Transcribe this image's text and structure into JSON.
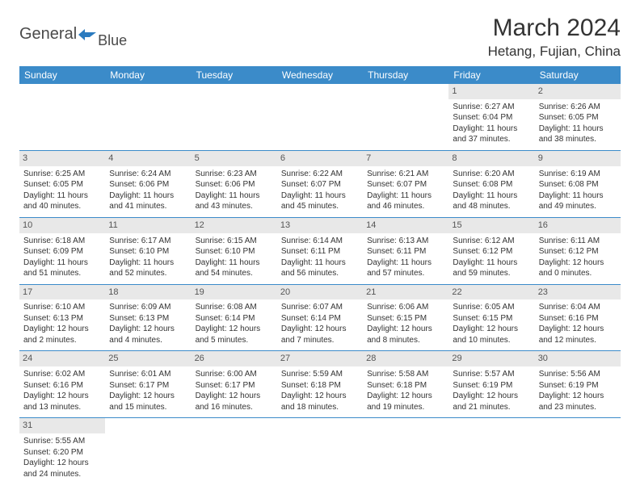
{
  "logo": {
    "text1": "General",
    "text2": "Blue"
  },
  "title": "March 2024",
  "location": "Hetang, Fujian, China",
  "headers": [
    "Sunday",
    "Monday",
    "Tuesday",
    "Wednesday",
    "Thursday",
    "Friday",
    "Saturday"
  ],
  "colors": {
    "header_bg": "#3b8bc9",
    "header_text": "#ffffff",
    "daynum_bg": "#e8e8e8",
    "cell_border": "#3b8bc9",
    "logo_blue": "#2b7bbf"
  },
  "weeks": [
    [
      null,
      null,
      null,
      null,
      null,
      {
        "n": "1",
        "sunrise": "Sunrise: 6:27 AM",
        "sunset": "Sunset: 6:04 PM",
        "daylight": "Daylight: 11 hours and 37 minutes."
      },
      {
        "n": "2",
        "sunrise": "Sunrise: 6:26 AM",
        "sunset": "Sunset: 6:05 PM",
        "daylight": "Daylight: 11 hours and 38 minutes."
      }
    ],
    [
      {
        "n": "3",
        "sunrise": "Sunrise: 6:25 AM",
        "sunset": "Sunset: 6:05 PM",
        "daylight": "Daylight: 11 hours and 40 minutes."
      },
      {
        "n": "4",
        "sunrise": "Sunrise: 6:24 AM",
        "sunset": "Sunset: 6:06 PM",
        "daylight": "Daylight: 11 hours and 41 minutes."
      },
      {
        "n": "5",
        "sunrise": "Sunrise: 6:23 AM",
        "sunset": "Sunset: 6:06 PM",
        "daylight": "Daylight: 11 hours and 43 minutes."
      },
      {
        "n": "6",
        "sunrise": "Sunrise: 6:22 AM",
        "sunset": "Sunset: 6:07 PM",
        "daylight": "Daylight: 11 hours and 45 minutes."
      },
      {
        "n": "7",
        "sunrise": "Sunrise: 6:21 AM",
        "sunset": "Sunset: 6:07 PM",
        "daylight": "Daylight: 11 hours and 46 minutes."
      },
      {
        "n": "8",
        "sunrise": "Sunrise: 6:20 AM",
        "sunset": "Sunset: 6:08 PM",
        "daylight": "Daylight: 11 hours and 48 minutes."
      },
      {
        "n": "9",
        "sunrise": "Sunrise: 6:19 AM",
        "sunset": "Sunset: 6:08 PM",
        "daylight": "Daylight: 11 hours and 49 minutes."
      }
    ],
    [
      {
        "n": "10",
        "sunrise": "Sunrise: 6:18 AM",
        "sunset": "Sunset: 6:09 PM",
        "daylight": "Daylight: 11 hours and 51 minutes."
      },
      {
        "n": "11",
        "sunrise": "Sunrise: 6:17 AM",
        "sunset": "Sunset: 6:10 PM",
        "daylight": "Daylight: 11 hours and 52 minutes."
      },
      {
        "n": "12",
        "sunrise": "Sunrise: 6:15 AM",
        "sunset": "Sunset: 6:10 PM",
        "daylight": "Daylight: 11 hours and 54 minutes."
      },
      {
        "n": "13",
        "sunrise": "Sunrise: 6:14 AM",
        "sunset": "Sunset: 6:11 PM",
        "daylight": "Daylight: 11 hours and 56 minutes."
      },
      {
        "n": "14",
        "sunrise": "Sunrise: 6:13 AM",
        "sunset": "Sunset: 6:11 PM",
        "daylight": "Daylight: 11 hours and 57 minutes."
      },
      {
        "n": "15",
        "sunrise": "Sunrise: 6:12 AM",
        "sunset": "Sunset: 6:12 PM",
        "daylight": "Daylight: 11 hours and 59 minutes."
      },
      {
        "n": "16",
        "sunrise": "Sunrise: 6:11 AM",
        "sunset": "Sunset: 6:12 PM",
        "daylight": "Daylight: 12 hours and 0 minutes."
      }
    ],
    [
      {
        "n": "17",
        "sunrise": "Sunrise: 6:10 AM",
        "sunset": "Sunset: 6:13 PM",
        "daylight": "Daylight: 12 hours and 2 minutes."
      },
      {
        "n": "18",
        "sunrise": "Sunrise: 6:09 AM",
        "sunset": "Sunset: 6:13 PM",
        "daylight": "Daylight: 12 hours and 4 minutes."
      },
      {
        "n": "19",
        "sunrise": "Sunrise: 6:08 AM",
        "sunset": "Sunset: 6:14 PM",
        "daylight": "Daylight: 12 hours and 5 minutes."
      },
      {
        "n": "20",
        "sunrise": "Sunrise: 6:07 AM",
        "sunset": "Sunset: 6:14 PM",
        "daylight": "Daylight: 12 hours and 7 minutes."
      },
      {
        "n": "21",
        "sunrise": "Sunrise: 6:06 AM",
        "sunset": "Sunset: 6:15 PM",
        "daylight": "Daylight: 12 hours and 8 minutes."
      },
      {
        "n": "22",
        "sunrise": "Sunrise: 6:05 AM",
        "sunset": "Sunset: 6:15 PM",
        "daylight": "Daylight: 12 hours and 10 minutes."
      },
      {
        "n": "23",
        "sunrise": "Sunrise: 6:04 AM",
        "sunset": "Sunset: 6:16 PM",
        "daylight": "Daylight: 12 hours and 12 minutes."
      }
    ],
    [
      {
        "n": "24",
        "sunrise": "Sunrise: 6:02 AM",
        "sunset": "Sunset: 6:16 PM",
        "daylight": "Daylight: 12 hours and 13 minutes."
      },
      {
        "n": "25",
        "sunrise": "Sunrise: 6:01 AM",
        "sunset": "Sunset: 6:17 PM",
        "daylight": "Daylight: 12 hours and 15 minutes."
      },
      {
        "n": "26",
        "sunrise": "Sunrise: 6:00 AM",
        "sunset": "Sunset: 6:17 PM",
        "daylight": "Daylight: 12 hours and 16 minutes."
      },
      {
        "n": "27",
        "sunrise": "Sunrise: 5:59 AM",
        "sunset": "Sunset: 6:18 PM",
        "daylight": "Daylight: 12 hours and 18 minutes."
      },
      {
        "n": "28",
        "sunrise": "Sunrise: 5:58 AM",
        "sunset": "Sunset: 6:18 PM",
        "daylight": "Daylight: 12 hours and 19 minutes."
      },
      {
        "n": "29",
        "sunrise": "Sunrise: 5:57 AM",
        "sunset": "Sunset: 6:19 PM",
        "daylight": "Daylight: 12 hours and 21 minutes."
      },
      {
        "n": "30",
        "sunrise": "Sunrise: 5:56 AM",
        "sunset": "Sunset: 6:19 PM",
        "daylight": "Daylight: 12 hours and 23 minutes."
      }
    ],
    [
      {
        "n": "31",
        "sunrise": "Sunrise: 5:55 AM",
        "sunset": "Sunset: 6:20 PM",
        "daylight": "Daylight: 12 hours and 24 minutes."
      },
      null,
      null,
      null,
      null,
      null,
      null
    ]
  ]
}
